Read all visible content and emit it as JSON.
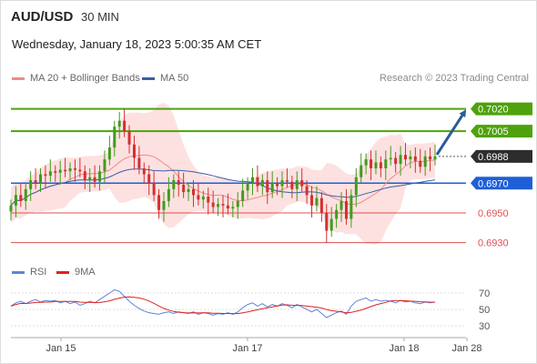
{
  "header": {
    "symbol": "AUD/USD",
    "timeframe": "30 MIN",
    "datetime": "Wednesday, January 18, 2023 5:00:35 AM CET",
    "copyright": "Research © 2023 Trading Central"
  },
  "legend": {
    "ma20": "MA 20 + Bollinger Bands",
    "ma50": "MA 50",
    "rsi": "RSI",
    "ma9": "9MA"
  },
  "colors": {
    "resistance": "#4ea20b",
    "support_key": "#1f5fd6",
    "support": "#e05050",
    "last_price": "#2d2d2d",
    "bollinger_fill": "#fde1e1",
    "ma20": "#f28a8a",
    "ma50": "#3b5ea6",
    "candle_up": "#3f9d1b",
    "candle_down": "#d33030",
    "arrow": "#2a5b9b",
    "rsi_line": "#5b86d6",
    "rsi_ma": "#e02020"
  },
  "chart_data": {
    "type": "candlestick",
    "instrument": "AUD/USD",
    "interval": "30 MIN",
    "ylim": [
      0.692,
      0.7032
    ],
    "x_ticks": [
      "Jan 15",
      "Jan 17",
      "Jan 18",
      "Jan 28"
    ],
    "levels": [
      {
        "price": 0.702,
        "label": "0.7020",
        "kind": "resistance"
      },
      {
        "price": 0.7005,
        "label": "0.7005",
        "kind": "resistance"
      },
      {
        "price": 0.6988,
        "label": "0.6988",
        "kind": "last"
      },
      {
        "price": 0.697,
        "label": "0.6970",
        "kind": "pivot"
      },
      {
        "price": 0.695,
        "label": "0.6950",
        "kind": "support"
      },
      {
        "price": 0.693,
        "label": "0.6930",
        "kind": "support"
      }
    ],
    "closes": [
      0.6955,
      0.6962,
      0.6958,
      0.6966,
      0.6972,
      0.697,
      0.6976,
      0.6975,
      0.6978,
      0.6977,
      0.6979,
      0.6978,
      0.698,
      0.6979,
      0.6978,
      0.6972,
      0.6974,
      0.6971,
      0.6978,
      0.6986,
      0.6994,
      0.7008,
      0.7012,
      0.7005,
      0.6996,
      0.6987,
      0.698,
      0.6976,
      0.697,
      0.6962,
      0.6952,
      0.6958,
      0.6966,
      0.6972,
      0.6969,
      0.6964,
      0.6966,
      0.6962,
      0.6959,
      0.6961,
      0.6957,
      0.6954,
      0.6956,
      0.6955,
      0.6953,
      0.6954,
      0.6958,
      0.6965,
      0.697,
      0.6974,
      0.6968,
      0.6972,
      0.6964,
      0.697,
      0.6968,
      0.6972,
      0.6971,
      0.6966,
      0.6972,
      0.6968,
      0.6962,
      0.6955,
      0.696,
      0.695,
      0.6938,
      0.6946,
      0.6952,
      0.6958,
      0.6946,
      0.6962,
      0.6974,
      0.6982,
      0.6986,
      0.698,
      0.6984,
      0.698,
      0.6986,
      0.6987,
      0.6983,
      0.6989,
      0.6986,
      0.6988,
      0.6985,
      0.6981,
      0.6988,
      0.6986,
      0.6988
    ],
    "rsi_ylim": [
      20,
      80
    ],
    "rsi_ticks": [
      70,
      50,
      30
    ],
    "rsi": [
      54,
      58,
      60,
      57,
      60,
      62,
      59,
      61,
      60,
      61,
      58,
      60,
      57,
      59,
      55,
      57,
      60,
      58,
      62,
      66,
      70,
      74,
      72,
      66,
      60,
      55,
      51,
      48,
      46,
      45,
      44,
      46,
      47,
      45,
      47,
      46,
      45,
      47,
      44,
      46,
      45,
      43,
      45,
      44,
      46,
      44,
      47,
      52,
      56,
      58,
      54,
      57,
      53,
      56,
      54,
      57,
      55,
      52,
      56,
      53,
      50,
      47,
      50,
      45,
      40,
      43,
      46,
      48,
      44,
      54,
      60,
      62,
      64,
      60,
      62,
      60,
      61,
      60,
      58,
      61,
      59,
      60,
      58,
      57,
      59,
      58,
      59
    ]
  }
}
